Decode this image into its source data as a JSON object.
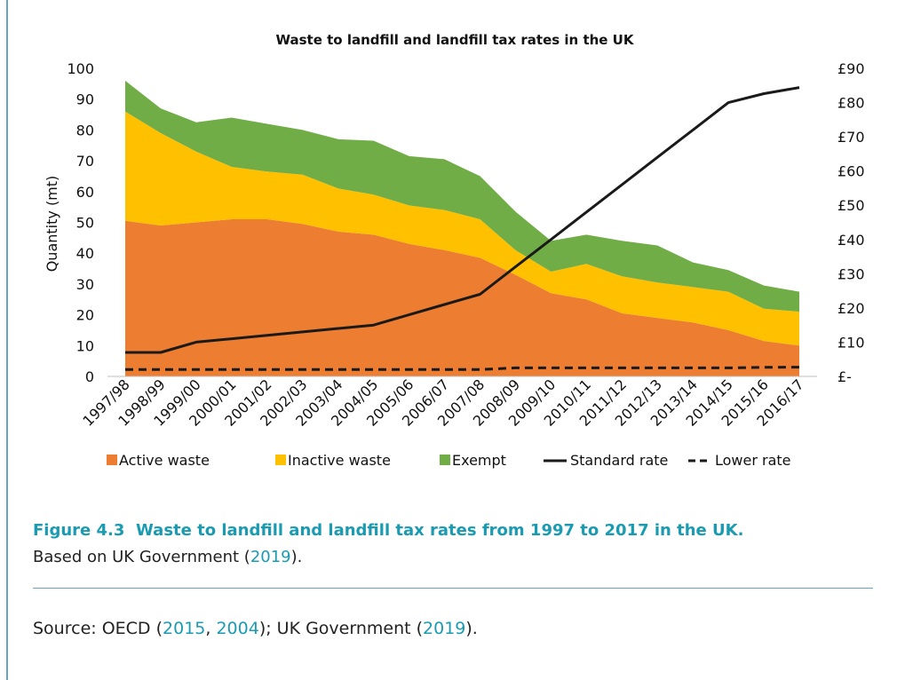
{
  "chart_data": {
    "type": "area",
    "title": "Waste to landfill and landfill tax rates in the UK",
    "ylabel": "Quantity (mt)",
    "ylim": [
      0,
      100
    ],
    "y_ticks": [
      "0",
      "10",
      "20",
      "30",
      "40",
      "50",
      "60",
      "70",
      "80",
      "90",
      "100"
    ],
    "y2lim": [
      0,
      90
    ],
    "y2_ticks": [
      "£-",
      "£10",
      "£20",
      "£30",
      "£40",
      "£50",
      "£60",
      "£70",
      "£80",
      "£90"
    ],
    "categories": [
      "1997/98",
      "1998/99",
      "1999/00",
      "2000/01",
      "2001/02",
      "2002/03",
      "2003/04",
      "2004/05",
      "2005/06",
      "2006/07",
      "2007/08",
      "2008/09",
      "2009/10",
      "2010/11",
      "2011/12",
      "2012/13",
      "2013/14",
      "2014/15",
      "2015/16",
      "2016/17"
    ],
    "stacked_series": [
      {
        "name": "Active waste",
        "color": "#ed7d31",
        "values": [
          50.5,
          49,
          50,
          51,
          51,
          49.5,
          47,
          46,
          43,
          41,
          38.5,
          33,
          27,
          25,
          20.5,
          19,
          17.5,
          15,
          11.5,
          10
        ]
      },
      {
        "name": "Inactive waste",
        "color": "#ffc000",
        "values": [
          35.5,
          30,
          23,
          17,
          15.5,
          16,
          14,
          13,
          12.5,
          13,
          12.5,
          8,
          7,
          11.5,
          12,
          11.5,
          11.5,
          12.5,
          10.5,
          11
        ]
      },
      {
        "name": "Exempt",
        "color": "#70ad47",
        "values": [
          10,
          8,
          9.5,
          16,
          15.5,
          14.5,
          16,
          17.5,
          16,
          16.5,
          14,
          12.5,
          10,
          9.5,
          11.5,
          12,
          8,
          7,
          7.5,
          6.5
        ]
      }
    ],
    "line_series": [
      {
        "name": "Standard rate",
        "axis": "right",
        "style": "solid",
        "color": "#1a1a1a",
        "values": [
          7,
          7,
          10,
          11,
          12,
          13,
          14,
          15,
          18,
          21,
          24,
          32,
          40,
          48,
          56,
          64,
          72,
          80,
          82.6,
          84.4
        ]
      },
      {
        "name": "Lower rate",
        "axis": "right",
        "style": "dashed",
        "color": "#1a1a1a",
        "values": [
          2,
          2,
          2,
          2,
          2,
          2,
          2,
          2,
          2,
          2,
          2,
          2.5,
          2.5,
          2.5,
          2.5,
          2.5,
          2.5,
          2.5,
          2.65,
          2.7
        ]
      }
    ],
    "legend_position": "bottom",
    "grid": false
  },
  "caption": {
    "figure_label": "Figure 4.3",
    "figure_title": "Waste to landfill and landfill tax rates from 1997 to 2017 in the UK.",
    "based_prefix": "Based on UK Government (",
    "based_link": "2019",
    "based_suffix": ")."
  },
  "source": {
    "prefix": "Source: OECD (",
    "link1": "2015",
    "sep": ", ",
    "link2": "2004",
    "mid": "); UK Government (",
    "link3": "2019",
    "suffix": ")."
  }
}
